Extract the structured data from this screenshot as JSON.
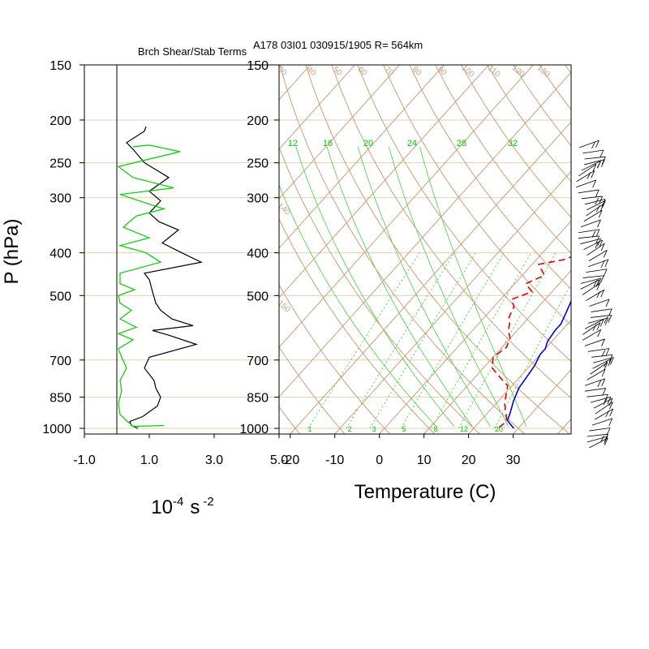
{
  "chart_data": [
    {
      "type": "line",
      "title": "Brch Shear/Stab Terms",
      "ylabel": "P (hPa)",
      "xlabel_base": "10",
      "xlabel_exp1": "-4",
      "xlabel_unit": "s",
      "xlabel_exp2": "-2",
      "y_scale": "log",
      "ylim": [
        1030,
        150
      ],
      "xlim": [
        -1.0,
        5.0
      ],
      "x_ticks": [
        "-1.0",
        "1.0",
        "3.0",
        "5.0"
      ],
      "y_ticks": [
        150,
        200,
        250,
        300,
        400,
        500,
        700,
        850,
        1000
      ],
      "grid": "horizontal at pressure ticks",
      "zero_line_x": 0,
      "series": [
        {
          "color": "#000000",
          "points": [
            [
              0.65,
              1000
            ],
            [
              0.45,
              985
            ],
            [
              0.4,
              965
            ],
            [
              0.8,
              940
            ],
            [
              1.25,
              890
            ],
            [
              1.35,
              850
            ],
            [
              1.2,
              810
            ],
            [
              1.15,
              780
            ],
            [
              0.85,
              730
            ],
            [
              1.0,
              690
            ],
            [
              2.45,
              645
            ],
            [
              1.6,
              615
            ],
            [
              1.1,
              600
            ],
            [
              2.35,
              585
            ],
            [
              1.7,
              565
            ],
            [
              1.35,
              540
            ],
            [
              1.2,
              520
            ],
            [
              1.1,
              490
            ],
            [
              1.0,
              460
            ],
            [
              0.85,
              445
            ],
            [
              2.6,
              420
            ],
            [
              2.0,
              400
            ],
            [
              1.4,
              380
            ],
            [
              1.9,
              355
            ],
            [
              1.3,
              340
            ],
            [
              1.0,
              325
            ],
            [
              1.35,
              305
            ],
            [
              1.0,
              290
            ],
            [
              1.6,
              270
            ],
            [
              0.85,
              250
            ],
            [
              0.5,
              233
            ],
            [
              0.3,
              225
            ],
            [
              0.85,
              212
            ],
            [
              0.9,
              207
            ]
          ]
        },
        {
          "color": "#00d000",
          "points": [
            [
              1.45,
              985
            ],
            [
              0.5,
              990
            ],
            [
              0.3,
              960
            ],
            [
              0.1,
              930
            ],
            [
              0.05,
              880
            ],
            [
              0.15,
              820
            ],
            [
              0.1,
              780
            ],
            [
              0.3,
              730
            ],
            [
              0.15,
              690
            ],
            [
              0.05,
              660
            ],
            [
              0.5,
              630
            ],
            [
              0.05,
              610
            ],
            [
              0.6,
              590
            ],
            [
              0.1,
              565
            ],
            [
              0.45,
              540
            ],
            [
              0.1,
              520
            ],
            [
              0.05,
              500
            ],
            [
              0.55,
              485
            ],
            [
              0.1,
              470
            ],
            [
              0.1,
              445
            ],
            [
              1.35,
              420
            ],
            [
              0.9,
              400
            ],
            [
              0.1,
              385
            ],
            [
              1.0,
              370
            ],
            [
              0.2,
              350
            ],
            [
              0.6,
              330
            ],
            [
              1.45,
              318
            ],
            [
              0.1,
              295
            ],
            [
              1.75,
              285
            ],
            [
              0.5,
              270
            ],
            [
              0.05,
              255
            ],
            [
              1.95,
              236
            ],
            [
              1.0,
              228
            ],
            [
              0.5,
              230
            ]
          ]
        }
      ]
    },
    {
      "type": "line",
      "title": "A178 03I01 030915/1905 R= 564km",
      "xlabel": "Temperature (C)",
      "y_scale": "log",
      "ylim": [
        1030,
        150
      ],
      "xlim": [
        -22.5,
        43
      ],
      "x_ticks": [
        "-20",
        "-10",
        "0",
        "10",
        "20",
        "30"
      ],
      "y_ticks": [
        150,
        200,
        250,
        300,
        400,
        500,
        700,
        850,
        1000
      ],
      "skew": "skew-T log-p",
      "dry_adiabat_labels": [
        "30",
        "40",
        "50",
        "60",
        "70",
        "80",
        "90",
        "100",
        "110",
        "120",
        "130",
        "140",
        "150"
      ],
      "moist_adiabat_labels": [
        "12",
        "16",
        "20",
        "24",
        "28",
        "32"
      ],
      "mixing_ratio_labels": [
        "1",
        "2",
        "3",
        "5",
        "8",
        "12",
        "20"
      ],
      "colors": {
        "temperature": "#0000e0",
        "dewpoint": "#e00000",
        "dry_adiabat": "#c8a07a",
        "moist": "#00c800",
        "mixing_ratio": "#00c800",
        "grid": "#e6cfae"
      },
      "series": [
        {
          "name": "Temperature",
          "color": "#0000e0",
          "style": "solid",
          "points": [
            [
              29,
              1000
            ],
            [
              27.5,
              980
            ],
            [
              26,
              960
            ],
            [
              25,
              920
            ],
            [
              23.5,
              870
            ],
            [
              22,
              810
            ],
            [
              21.5,
              760
            ],
            [
              21,
              720
            ],
            [
              20.5,
              700
            ],
            [
              20,
              680
            ],
            [
              20,
              660
            ],
            [
              19,
              635
            ],
            [
              18.5,
              600
            ],
            [
              18.5,
              580
            ],
            [
              17.5,
              550
            ],
            [
              16,
              510
            ],
            [
              15,
              490
            ],
            [
              13.5,
              460
            ],
            [
              12,
              440
            ],
            [
              11.5,
              420
            ],
            [
              11,
              405
            ],
            [
              10.5,
              380
            ],
            [
              9.5,
              350
            ],
            [
              8.5,
              325
            ],
            [
              7.5,
              310
            ],
            [
              6,
              295
            ],
            [
              5,
              270
            ],
            [
              4,
              255
            ],
            [
              3,
              240
            ],
            [
              2,
              220
            ],
            [
              1,
              205
            ]
          ]
        },
        {
          "name": "Dewpoint",
          "color": "#e00000",
          "style": "dashed",
          "points": [
            [
              25.5,
              995
            ],
            [
              26,
              965
            ],
            [
              24.5,
              930
            ],
            [
              22,
              880
            ],
            [
              19,
              800
            ],
            [
              16,
              770
            ],
            [
              12,
              730
            ],
            [
              10,
              690
            ],
            [
              11,
              655
            ],
            [
              10,
              625
            ],
            [
              8,
              600
            ],
            [
              7,
              580
            ],
            [
              5.5,
              560
            ],
            [
              4.5,
              530
            ],
            [
              2.5,
              510
            ],
            [
              5.5,
              490
            ],
            [
              2.5,
              470
            ],
            [
              5,
              450
            ],
            [
              1.5,
              425
            ],
            [
              6,
              415
            ],
            [
              8,
              405
            ],
            [
              9,
              385
            ],
            [
              6,
              365
            ],
            [
              4,
              340
            ],
            [
              5.5,
              320
            ],
            [
              4,
              305
            ],
            [
              4.5,
              285
            ],
            [
              4,
              270
            ],
            [
              2,
              255
            ],
            [
              0,
              240
            ],
            [
              -1,
              230
            ]
          ]
        }
      ]
    }
  ],
  "wind_barbs": {
    "color": "#000000",
    "count": 54
  }
}
